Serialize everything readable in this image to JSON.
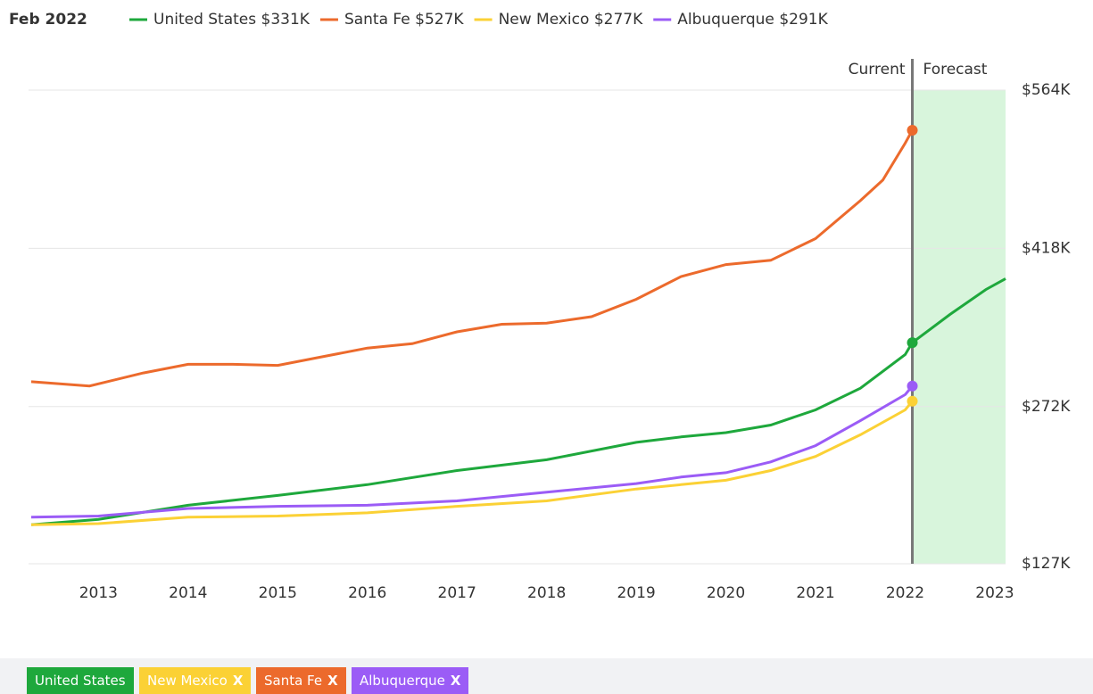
{
  "chart_data": {
    "type": "line",
    "title": "Feb 2022",
    "xlim": [
      2012.22,
      2023.12
    ],
    "xticks": [
      2013,
      2014,
      2015,
      2016,
      2017,
      2018,
      2019,
      2020,
      2021,
      2022,
      2023
    ],
    "ylim": [
      127,
      564
    ],
    "yticks": [
      {
        "value": 127,
        "label": "$127K"
      },
      {
        "value": 272,
        "label": "$272K"
      },
      {
        "value": 418,
        "label": "$418K"
      },
      {
        "value": 564,
        "label": "$564K"
      }
    ],
    "grid": true,
    "current_x": 2022.08,
    "current_text": "Current",
    "forecast_text": "Forecast",
    "forecast_color": "#d8f5dc",
    "series": [
      {
        "name": "United States",
        "label": "$331K",
        "color": "#1ea83c",
        "x": [
          2012.25,
          2013,
          2014,
          2015,
          2016,
          2017,
          2018,
          2019,
          2019.5,
          2020,
          2020.5,
          2021,
          2021.5,
          2022,
          2022.08,
          2022.5,
          2022.9,
          2023.12
        ],
        "values": [
          163,
          168,
          181,
          190,
          200,
          213,
          223,
          239,
          244,
          248,
          255,
          269,
          289,
          320,
          331,
          357,
          380,
          390
        ]
      },
      {
        "name": "Santa Fe",
        "label": "$527K",
        "color": "#ec6a2c",
        "x": [
          2012.25,
          2012.9,
          2013.5,
          2014,
          2014.5,
          2015,
          2015.5,
          2016,
          2016.5,
          2017,
          2017.5,
          2018,
          2018.5,
          2019,
          2019.5,
          2020,
          2020.5,
          2021,
          2021.5,
          2021.75,
          2022,
          2022.08
        ],
        "values": [
          295,
          291,
          303,
          311,
          311,
          310,
          318,
          326,
          330,
          341,
          348,
          349,
          355,
          371,
          392,
          403,
          407,
          427,
          462,
          481,
          515,
          527
        ]
      },
      {
        "name": "New Mexico",
        "label": "$277K",
        "color": "#fbd135",
        "x": [
          2012.25,
          2013,
          2014,
          2015,
          2016,
          2017,
          2018,
          2019,
          2019.5,
          2020,
          2020.5,
          2021,
          2021.5,
          2022,
          2022.08
        ],
        "values": [
          163,
          164,
          170,
          171,
          174,
          180,
          185,
          196,
          200,
          204,
          213,
          226,
          246,
          269,
          277
        ]
      },
      {
        "name": "Albuquerque",
        "label": "$291K",
        "color": "#9b5cf6",
        "x": [
          2012.25,
          2013,
          2014,
          2015,
          2016,
          2017,
          2018,
          2019,
          2019.5,
          2020,
          2020.5,
          2021,
          2021.5,
          2022,
          2022.08
        ],
        "values": [
          170,
          171,
          178,
          180,
          181,
          185,
          193,
          201,
          207,
          211,
          221,
          236,
          259,
          283,
          291
        ]
      }
    ]
  },
  "filters": [
    {
      "label": "United States",
      "color": "#1ea83c"
    },
    {
      "label": "New Mexico",
      "remove": "X",
      "color": "#fbd135"
    },
    {
      "label": "Santa Fe",
      "remove": "X",
      "color": "#ec6a2c"
    },
    {
      "label": "Albuquerque",
      "remove": "X",
      "color": "#9b5cf6"
    }
  ]
}
